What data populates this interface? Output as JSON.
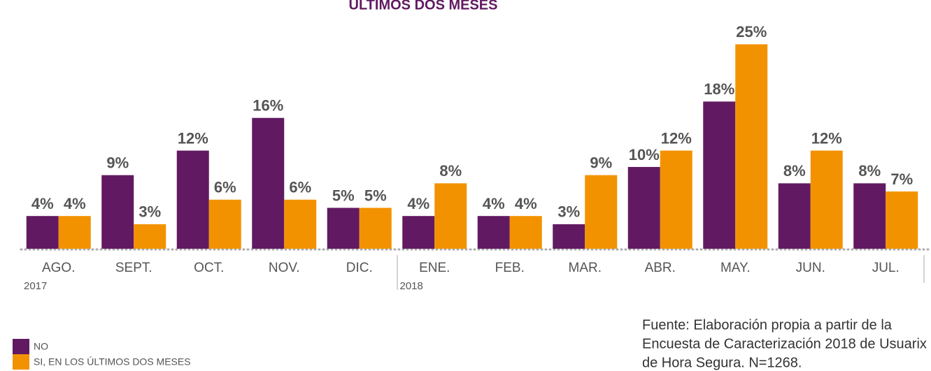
{
  "chart_data": {
    "type": "bar",
    "title": "ÚLTIMOS DOS MESES",
    "categories": [
      "AGO.",
      "SEPT.",
      "OCT.",
      "NOV.",
      "DIC.",
      "ENE.",
      "FEB.",
      "MAR.",
      "ABR.",
      "MAY.",
      "JUN.",
      "JUL."
    ],
    "year_labels": [
      {
        "label": "2017",
        "index": 0
      },
      {
        "label": "2018",
        "index": 5
      }
    ],
    "series": [
      {
        "name": "NO",
        "color": "#611a61",
        "values": [
          4,
          9,
          12,
          16,
          5,
          4,
          4,
          3,
          10,
          18,
          8,
          8
        ],
        "value_labels": [
          "4%",
          "9%",
          "12%",
          "16%",
          "5%",
          "4%",
          "4%",
          "3%",
          "10%",
          "18%",
          "8%",
          "8%"
        ]
      },
      {
        "name": "SI, EN LOS ÚLTIMOS DOS MESES",
        "color": "#f39200",
        "values": [
          4,
          3,
          6,
          6,
          5,
          8,
          4,
          9,
          12,
          25,
          12,
          7
        ],
        "value_labels": [
          "4%",
          "3%",
          "6%",
          "6%",
          "5%",
          "8%",
          "4%",
          "9%",
          "12%",
          "25%",
          "12%",
          "7%"
        ]
      }
    ],
    "ylim": [
      0,
      27
    ],
    "source": [
      "Fuente: Elaboración propia a partir de la",
      "Encuesta de Caracterización 2018 de Usuarix",
      "de Hora Segura. N=1268."
    ]
  }
}
